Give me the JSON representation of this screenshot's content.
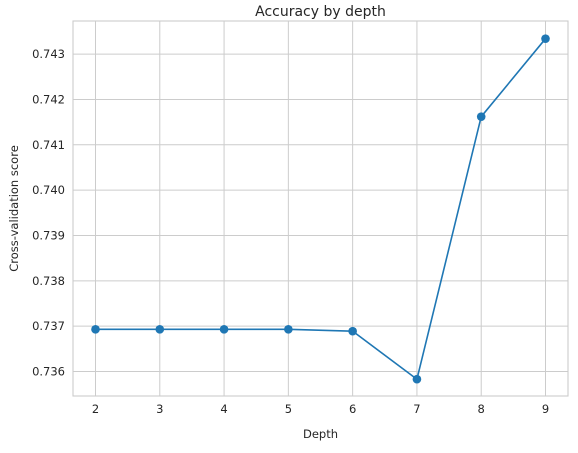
{
  "chart_data": {
    "type": "line",
    "title": "Accuracy by depth",
    "xlabel": "Depth",
    "ylabel": "Cross-validation score",
    "x": [
      2,
      3,
      4,
      5,
      6,
      7,
      8,
      9
    ],
    "series": [
      {
        "values": [
          0.73693,
          0.73693,
          0.73693,
          0.73693,
          0.73689,
          0.73583,
          0.74162,
          0.74334
        ],
        "color": "#1f77b4",
        "marker": "circle"
      }
    ],
    "xlim": [
      1.65,
      9.35
    ],
    "ylim": [
      0.73546,
      0.74373
    ],
    "x_ticks": [
      2,
      3,
      4,
      5,
      6,
      7,
      8,
      9
    ],
    "x_tick_labels": [
      "2",
      "3",
      "4",
      "5",
      "6",
      "7",
      "8",
      "9"
    ],
    "y_ticks": [
      0.736,
      0.737,
      0.738,
      0.739,
      0.74,
      0.741,
      0.742,
      0.743
    ],
    "y_tick_labels": [
      "0.736",
      "0.737",
      "0.738",
      "0.739",
      "0.740",
      "0.741",
      "0.742",
      "0.743"
    ],
    "grid": true,
    "legend": "none",
    "grid_color": "#cccccc",
    "text_color": "#262626"
  }
}
